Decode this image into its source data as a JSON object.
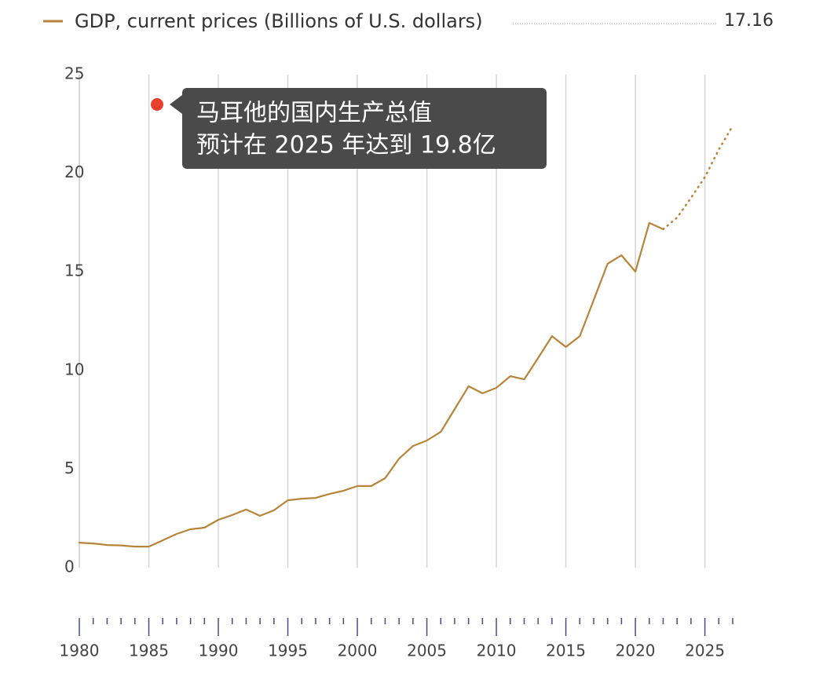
{
  "chart_data": {
    "type": "line",
    "x": [
      1980,
      1981,
      1982,
      1983,
      1984,
      1985,
      1986,
      1987,
      1988,
      1989,
      1990,
      1991,
      1992,
      1993,
      1994,
      1995,
      1996,
      1997,
      1998,
      1999,
      2000,
      2001,
      2002,
      2003,
      2004,
      2005,
      2006,
      2007,
      2008,
      2009,
      2010,
      2011,
      2012,
      2013,
      2014,
      2015,
      2016,
      2017,
      2018,
      2019,
      2020,
      2021,
      2022,
      2023,
      2024,
      2025,
      2026,
      2027
    ],
    "series": [
      {
        "name": "GDP, current prices (Billions of U.S. dollars)",
        "color": "#b8843a",
        "style": "solid",
        "values": [
          1.27,
          1.23,
          1.15,
          1.13,
          1.07,
          1.07,
          1.39,
          1.71,
          1.95,
          2.03,
          2.43,
          2.67,
          2.95,
          2.63,
          2.91,
          3.42,
          3.5,
          3.54,
          3.74,
          3.9,
          4.14,
          4.14,
          4.54,
          5.53,
          6.17,
          6.45,
          6.89,
          8.04,
          9.2,
          8.84,
          9.12,
          9.71,
          9.55,
          10.63,
          11.74,
          11.19,
          11.74,
          13.57,
          15.41,
          15.84,
          15.01,
          17.48,
          17.16,
          null,
          null,
          null,
          null,
          null
        ]
      },
      {
        "color": "#b8843a",
        "style": "dotted",
        "values": [
          null,
          null,
          null,
          null,
          null,
          null,
          null,
          null,
          null,
          null,
          null,
          null,
          null,
          null,
          null,
          null,
          null,
          null,
          null,
          null,
          null,
          null,
          null,
          null,
          null,
          null,
          null,
          null,
          null,
          null,
          null,
          null,
          null,
          null,
          null,
          null,
          null,
          null,
          null,
          null,
          null,
          null,
          17.16,
          17.75,
          18.75,
          19.8,
          21.2,
          22.4
        ]
      }
    ],
    "legend_value": 17.16,
    "xlim": [
      1980,
      2027
    ],
    "xticks": [
      1980,
      1985,
      1990,
      1995,
      2000,
      2005,
      2010,
      2015,
      2020,
      2025
    ],
    "xminorticks": [
      1981,
      1982,
      1983,
      1984,
      1986,
      1987,
      1988,
      1989,
      1991,
      1992,
      1993,
      1994,
      1996,
      1997,
      1998,
      1999,
      2001,
      2002,
      2003,
      2004,
      2006,
      2007,
      2008,
      2009,
      2011,
      2012,
      2013,
      2014,
      2016,
      2017,
      2018,
      2019,
      2021,
      2022,
      2023,
      2024,
      2026,
      2027
    ],
    "ylim": [
      0,
      25
    ],
    "yticks": [
      0,
      5,
      10,
      15,
      20,
      25
    ],
    "grid": true,
    "annotation": {
      "lines": [
        "马耳他的国内生产总值",
        "预计在 2025 年达到 19.8亿"
      ]
    }
  }
}
